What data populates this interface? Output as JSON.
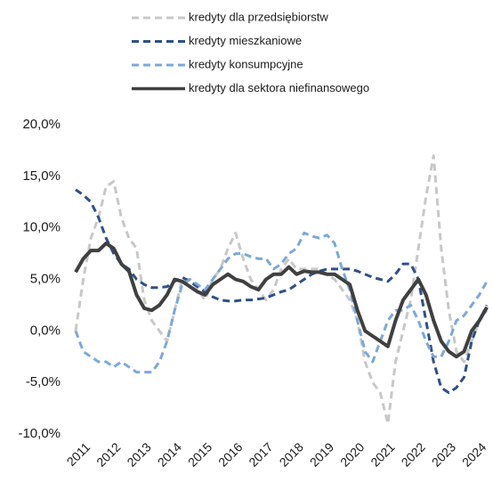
{
  "chart_data": {
    "type": "line",
    "x": [
      2010.75,
      2011,
      2011.25,
      2011.5,
      2011.75,
      2012,
      2012.25,
      2012.5,
      2012.75,
      2013,
      2013.25,
      2013.5,
      2013.75,
      2014,
      2014.25,
      2014.5,
      2014.75,
      2015,
      2015.25,
      2015.5,
      2015.75,
      2016,
      2016.25,
      2016.5,
      2016.75,
      2017,
      2017.25,
      2017.5,
      2017.75,
      2018,
      2018.25,
      2018.5,
      2018.75,
      2019,
      2019.25,
      2019.5,
      2019.75,
      2020,
      2020.25,
      2020.5,
      2020.75,
      2021,
      2021.25,
      2021.5,
      2021.75,
      2022,
      2022.25,
      2022.5,
      2022.75,
      2023,
      2023.25,
      2023.5,
      2023.75,
      2024,
      2024.25
    ],
    "xlim": [
      2010.75,
      2024.45
    ],
    "xticks": [
      2011,
      2012,
      2013,
      2014,
      2015,
      2016,
      2017,
      2018,
      2019,
      2020,
      2021,
      2022,
      2023,
      2024
    ],
    "ylim": [
      -10,
      20
    ],
    "yticks": [
      {
        "value": -10,
        "label": "-10,0%"
      },
      {
        "value": -5,
        "label": "-5,0%"
      },
      {
        "value": 0,
        "label": "0,0%"
      },
      {
        "value": 5,
        "label": "5,0%"
      },
      {
        "value": 10,
        "label": "10,0%"
      },
      {
        "value": 15,
        "label": "15,0%"
      },
      {
        "value": 20,
        "label": "20,0%"
      }
    ],
    "series": [
      {
        "name": "kredyty dla przedsiębiorstw",
        "color": "#c8c8c8",
        "dashed": true,
        "values": [
          0,
          5,
          9,
          11,
          14,
          14.5,
          11,
          9,
          8,
          3,
          1,
          0,
          -1,
          2,
          5,
          5,
          4,
          3,
          5,
          6,
          8,
          9.5,
          7,
          5,
          4,
          3,
          4,
          6,
          7,
          6,
          6,
          6,
          6,
          5.5,
          5,
          4,
          3,
          1,
          -3,
          -5,
          -6,
          -9,
          -3,
          0,
          3,
          8,
          13,
          17,
          8,
          2,
          -2,
          -3,
          -1,
          1,
          2
        ]
      },
      {
        "name": "kredyty mieszkaniowe",
        "color": "#2e4f8a",
        "dashed": true,
        "values": [
          13.7,
          13.2,
          12.5,
          11,
          9,
          7.5,
          6.5,
          6,
          5,
          4.5,
          4.2,
          4.2,
          4.3,
          4.8,
          5.2,
          4.8,
          4.3,
          3.8,
          3.3,
          3,
          2.9,
          2.9,
          3,
          3,
          3.1,
          3.2,
          3.5,
          3.8,
          4,
          4.5,
          5,
          5.5,
          5.8,
          6,
          6,
          6,
          6,
          5.8,
          5.5,
          5.2,
          5,
          4.8,
          5.5,
          6.5,
          6.5,
          5,
          1,
          -3,
          -5.5,
          -6,
          -5.5,
          -4.5,
          -1,
          1,
          2.5
        ]
      },
      {
        "name": "kredyty konsumpcyjne",
        "color": "#7aa8dc",
        "dashed": true,
        "values": [
          0,
          -2,
          -2.5,
          -3,
          -3,
          -3.5,
          -3,
          -3.5,
          -4,
          -4,
          -4,
          -3,
          -1,
          2,
          4.5,
          5,
          4.5,
          4,
          5,
          6,
          7,
          7.5,
          7.5,
          7.2,
          7,
          7,
          6,
          6.5,
          7.5,
          8,
          9.5,
          9.2,
          9,
          9.3,
          8.5,
          6,
          4,
          1,
          -2,
          -3,
          -1,
          1,
          2,
          2,
          2.5,
          1,
          -1,
          -2.5,
          -2.5,
          -1,
          1,
          1.5,
          2.5,
          3.5,
          4.8
        ]
      },
      {
        "name": "kredyty dla sektora niefinansowego",
        "color": "#404040",
        "dashed": false,
        "values": [
          5.7,
          7,
          7.8,
          7.8,
          8.5,
          8,
          6.5,
          5.8,
          3.5,
          2.2,
          2,
          2.5,
          3.5,
          5,
          4.8,
          4.3,
          3.8,
          3.5,
          4.5,
          5,
          5.5,
          5,
          4.8,
          4.3,
          4,
          5,
          5.5,
          5.5,
          6.2,
          5.5,
          5.8,
          5.7,
          5.7,
          5.5,
          5.5,
          5,
          4.5,
          2,
          0,
          -0.5,
          -1,
          -1.5,
          1,
          3,
          4,
          5,
          3.5,
          1,
          -1,
          -2,
          -2.5,
          -2,
          0,
          1,
          2.3
        ]
      }
    ]
  }
}
